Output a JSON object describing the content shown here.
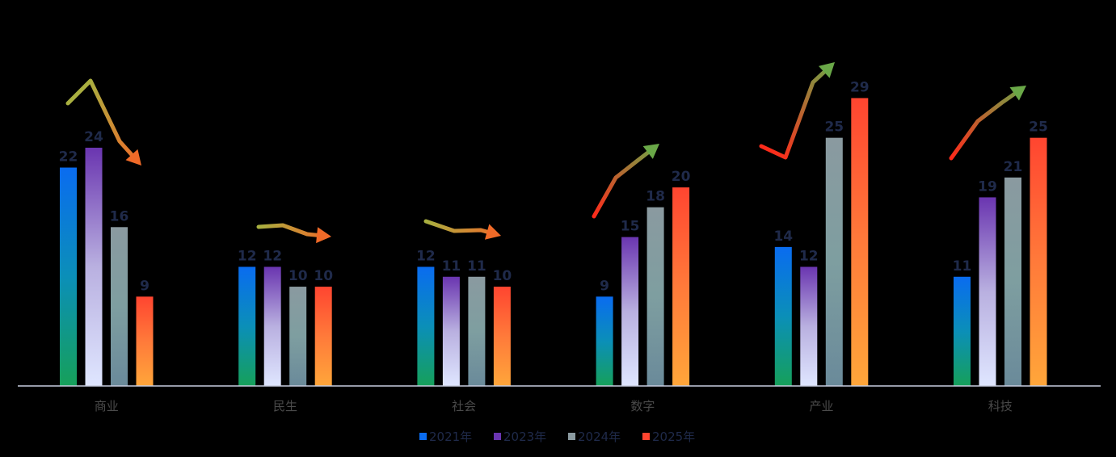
{
  "chart_data": {
    "type": "bar",
    "categories": [
      "商业",
      "民生",
      "社会",
      "数字",
      "产业",
      "科技"
    ],
    "series": [
      {
        "name": "2021年",
        "values": [
          22,
          12,
          12,
          9,
          14,
          11
        ]
      },
      {
        "name": "2023年",
        "values": [
          24,
          12,
          11,
          15,
          12,
          19
        ]
      },
      {
        "name": "2024年",
        "values": [
          16,
          10,
          11,
          18,
          25,
          21
        ]
      },
      {
        "name": "2025年",
        "values": [
          9,
          10,
          10,
          20,
          29,
          25
        ]
      }
    ],
    "ylim": [
      0,
      34
    ],
    "grid": false,
    "legend_position": "bottom-center",
    "data_labels": true,
    "trend_arrows": [
      "down",
      "right",
      "right",
      "up",
      "up",
      "up"
    ]
  },
  "colors": {
    "background": "#000000",
    "axis": "#c8cde0",
    "label_text": "#1f2a4a",
    "category_text": "#4a4a4a",
    "legend_text": "#1f2a4a",
    "series": [
      {
        "top": "#0a6cf0",
        "mid": "#0b8fb8",
        "bottom": "#16a05a"
      },
      {
        "top": "#6a35b0",
        "mid": "#b9b0e0",
        "bottom": "#dfe6ff"
      },
      {
        "top": "#8a9aa0",
        "mid": "#7e9ea0",
        "bottom": "#6a8a9a"
      },
      {
        "top": "#ff4530",
        "mid": "#ff7a3a",
        "bottom": "#ffa63a"
      }
    ],
    "trend": {
      "red": "#ff2a1a",
      "orange": "#f06a28",
      "olive": "#a8b040",
      "green": "#6aa848"
    }
  }
}
